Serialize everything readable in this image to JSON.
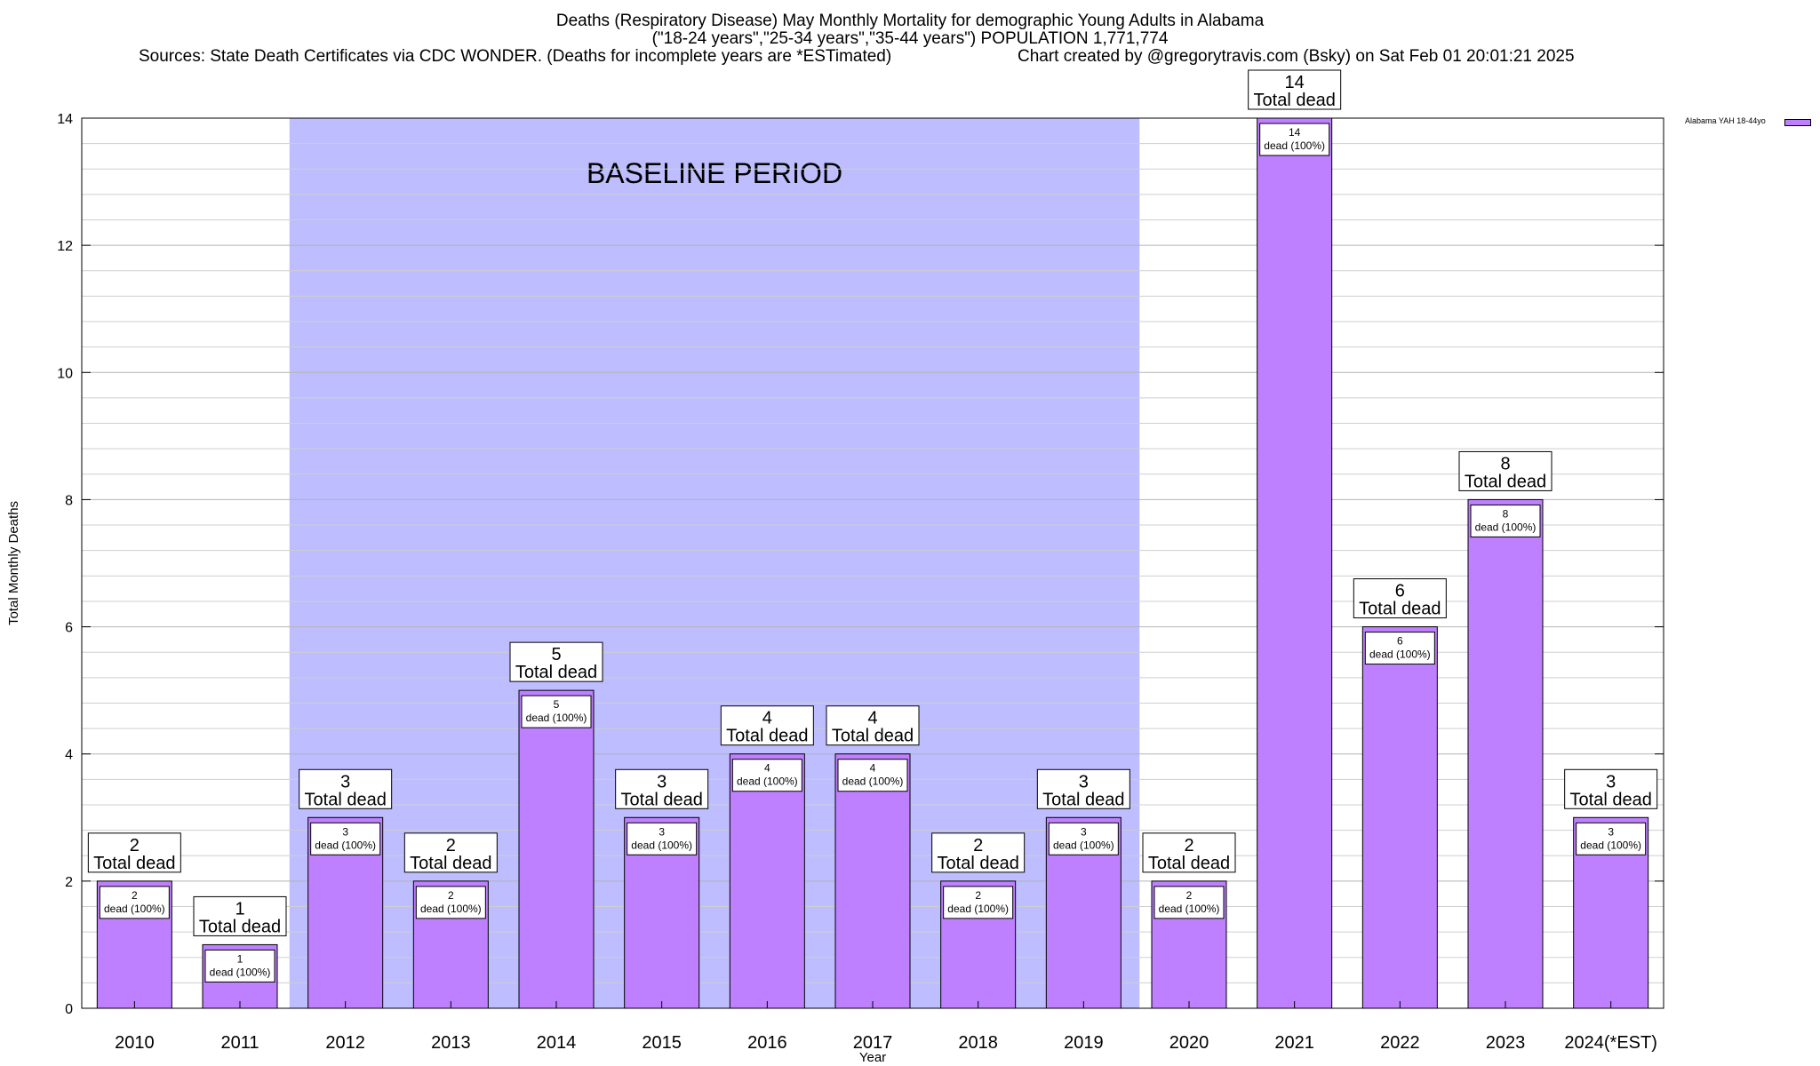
{
  "chart_data": {
    "type": "bar",
    "title": [
      "Deaths (Respiratory Disease) May Monthly Mortality for demographic Young Adults in Alabama",
      "(\"18-24 years\",\"25-34 years\",\"35-44 years\") POPULATION 1,771,774"
    ],
    "sources_text": "Sources: State Death Certificates via CDC WONDER. (Deaths for incomplete years are *ESTimated)",
    "credit_text": "Chart created by @gregorytravis.com (Bsky) on Sat Feb 01 20:01:21 2025",
    "xlabel": "Year",
    "ylabel": "Total Monthly Deaths",
    "ylim": [
      0,
      14
    ],
    "yticks": [
      0,
      2,
      4,
      6,
      8,
      10,
      12,
      14
    ],
    "grid": true,
    "categories": [
      "2010",
      "2011",
      "2012",
      "2013",
      "2014",
      "2015",
      "2016",
      "2017",
      "2018",
      "2019",
      "2020",
      "2021",
      "2022",
      "2023",
      "2024(*EST)"
    ],
    "series": [
      {
        "name": "Alabama YAH 18-44yo",
        "color": "#bf80ff",
        "values": [
          2,
          1,
          3,
          2,
          5,
          3,
          4,
          4,
          2,
          3,
          2,
          14,
          6,
          8,
          3
        ]
      }
    ],
    "bar_label_suffix": "Total dead",
    "inner_label_suffix": "dead (100%)",
    "baseline": {
      "label": "BASELINE PERIOD",
      "from": "2012",
      "to": "2019",
      "color": "#bdbdff"
    },
    "legend_position": "top-right"
  }
}
